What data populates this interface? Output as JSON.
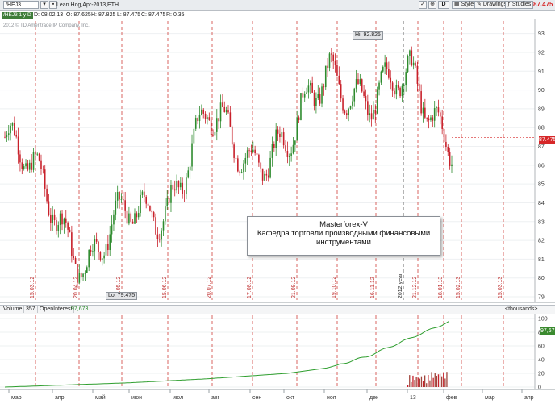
{
  "toolbar": {
    "symbol": "/HEJ3",
    "description": "Lean Hog,Apr-2013,ETH",
    "buttons": [
      "D",
      "Style",
      "Drawings",
      "Studies"
    ],
    "last_price": "87.475"
  },
  "quote": {
    "tag": "/HEJ3 1 y D",
    "date": "D: 08.02.13",
    "open": "O: 87.625",
    "high": "H: 87.825",
    "low": "L: 87.475",
    "close": "C: 87.475",
    "range": "R: 0.35"
  },
  "copyright": "2012 © TD Ameritrade IP Company, Inc.",
  "markers": {
    "high": "Hi: 92.825",
    "low": "Lo: 79.475"
  },
  "annotation": {
    "line1": "Masterforex-V",
    "line2": "Кафедра торговли производными финансовыми",
    "line3": "инструментами"
  },
  "volume_header": {
    "volume_label": "Volume",
    "volume_value": "357",
    "oi_label": "OpenInterest",
    "oi_value": "97,673",
    "units": "<thousands>"
  },
  "price_axis": [
    "93",
    "92",
    "91",
    "90",
    "89",
    "88",
    "87",
    "86",
    "85",
    "84",
    "83",
    "82",
    "81",
    "80",
    "79"
  ],
  "volume_axis": [
    "100",
    "80",
    "60",
    "40",
    "20",
    "0"
  ],
  "month_axis": [
    "мар",
    "апр",
    "май",
    "июн",
    "июл",
    "авг",
    "сен",
    "окт",
    "ноя",
    "дек",
    "13",
    "фев",
    "мар",
    "апр"
  ],
  "expiry_dates": [
    "15.03.12",
    "20.04.12",
    "15.05.12",
    "15.06.12",
    "20.07.12",
    "17.08.12",
    "21.09.12",
    "19.10.12",
    "16.11.12",
    "21.12.12",
    "18.01.13",
    "15.02.13",
    "15.03.13"
  ],
  "year_label": "2012 year",
  "colors": {
    "up": "#2e8b2e",
    "down": "#c8202a",
    "grid_red": "#d0403a",
    "price_tag": "#d62728",
    "oi": "#2e9e2e"
  },
  "chart_data": {
    "type": "line",
    "title": "Lean Hog,Apr-2013,ETH",
    "ylim": [
      79,
      93.5
    ],
    "x": [
      "2012-03",
      "2012-04",
      "2012-05",
      "2012-06",
      "2012-07",
      "2012-08",
      "2012-09",
      "2012-10",
      "2012-11",
      "2012-12",
      "2013-01",
      "2013-02"
    ],
    "series": [
      {
        "values": [
          87.5,
          84.5,
          80.8,
          83.2,
          84.0,
          88.5,
          86.5,
          87.2,
          91.0,
          89.5,
          90.5,
          87.475
        ]
      }
    ],
    "open_interest": {
      "ylim": [
        0,
        100
      ],
      "values": [
        0,
        2,
        4,
        6,
        9,
        12,
        16,
        20,
        28,
        45,
        70,
        95
      ]
    }
  }
}
